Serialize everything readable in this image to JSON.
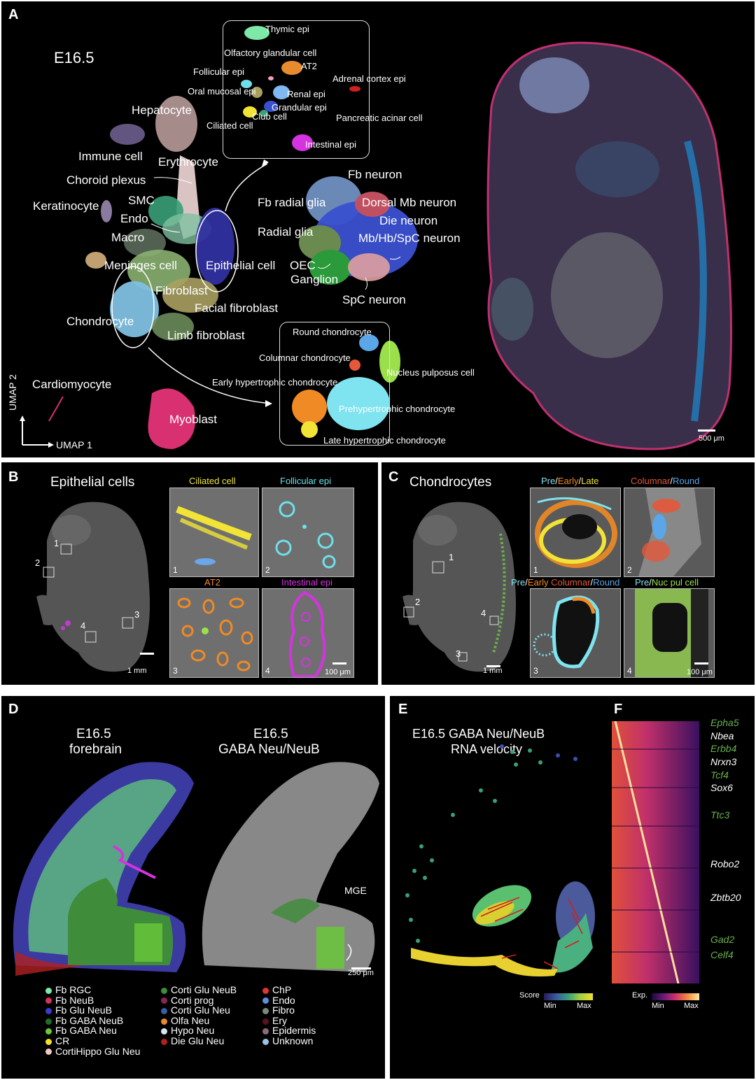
{
  "panels": {
    "a": {
      "label": "A",
      "stage": "E16.5",
      "axis_x": "UMAP 1",
      "axis_y": "UMAP 2",
      "scale_bar": "500 μm",
      "clusters": [
        "Hepatocyte",
        "Immune cell",
        "Erythrocyte",
        "Choroid plexus",
        "Keratinocyte",
        "SMC",
        "Endo",
        "Macro",
        "Meninges cell",
        "Epithelial cell",
        "Fibroblast",
        "Facial fibroblast",
        "Chondrocyte",
        "Limb fibroblast",
        "Cardiomyocyte",
        "Myoblast",
        "Fb neuron",
        "Fb radial glia",
        "Dorsal Mb neuron",
        "Die neuron",
        "Radial glia",
        "Mb/Hb/SpC neuron",
        "OEC",
        "Ganglion",
        "SpC neuron"
      ],
      "epi_inset": [
        "Thymic epi",
        "Olfactory glandular cell",
        "AT2",
        "Follicular epi",
        "Adrenal cortex epi",
        "Oral mucosal epi",
        "Renal epi",
        "Grandular epi",
        "Club cell",
        "Ciliated cell",
        "Pancreatic acinar cell",
        "Intestinal epi"
      ],
      "chondro_inset": [
        "Round chondrocyte",
        "Columnar chondrocyte",
        "Early hypertrophic chondrocyte",
        "Nucleus pulposus cell",
        "Prehypertrophic chondrocyte",
        "Late hypertrophic chondrocyte"
      ]
    },
    "b": {
      "label": "B",
      "title": "Epithelial cells",
      "tiles": [
        {
          "title": "Ciliated cell",
          "num": "1",
          "color": "#f1e436"
        },
        {
          "title": "Follicular epi",
          "num": "2",
          "color": "#6fe0ea"
        },
        {
          "title": "AT2",
          "num": "3",
          "color": "#f08a24"
        },
        {
          "title": "Intestinal epi",
          "num": "4",
          "color": "#d633e0"
        }
      ],
      "scale_mm": "1 mm",
      "scale_um": "100 μm",
      "markers": [
        "1",
        "2",
        "3",
        "4"
      ]
    },
    "c": {
      "label": "C",
      "title": "Chondrocytes",
      "tile_titles": [
        [
          {
            "t": "Pre",
            "c": "#7fe3f0"
          },
          {
            "t": "/",
            "c": "#ffffff"
          },
          {
            "t": "Early",
            "c": "#f08a24"
          },
          {
            "t": "/",
            "c": "#ffffff"
          },
          {
            "t": "Late",
            "c": "#f1e436"
          }
        ],
        [
          {
            "t": "Columnar",
            "c": "#e5583a"
          },
          {
            "t": "/",
            "c": "#ffffff"
          },
          {
            "t": "Round",
            "c": "#5aa6e8"
          }
        ],
        [
          {
            "t": "Pre",
            "c": "#7fe3f0"
          },
          {
            "t": "/",
            "c": "#ffffff"
          },
          {
            "t": "Early",
            "c": "#f08a24"
          },
          {
            "t": " ",
            "c": "#ffffff"
          },
          {
            "t": "Columnar",
            "c": "#e5583a"
          },
          {
            "t": "/",
            "c": "#ffffff"
          },
          {
            "t": "Round",
            "c": "#5aa6e8"
          }
        ],
        [
          {
            "t": "Pre",
            "c": "#7fe3f0"
          },
          {
            "t": "/",
            "c": "#ffffff"
          },
          {
            "t": "Nuc pul cell",
            "c": "#9be04a"
          }
        ]
      ],
      "nums": [
        "1",
        "2",
        "3",
        "4"
      ],
      "scale_mm": "1 mm",
      "scale_um": "100 μm"
    },
    "d": {
      "label": "D",
      "left_title_1": "E16.5",
      "left_title_2": "forebrain",
      "right_title_1": "E16.5",
      "right_title_2": "GABA Neu/NeuB",
      "mge": "MGE",
      "scale": "250 μm",
      "legend": [
        {
          "name": "Fb RGC",
          "color": "#7ee8a8"
        },
        {
          "name": "Fb NeuB",
          "color": "#d8305a"
        },
        {
          "name": "Fb Glu NeuB",
          "color": "#3b3ad0"
        },
        {
          "name": "Fb GABA NeuB",
          "color": "#1f6d2a"
        },
        {
          "name": "Fb GABA Neu",
          "color": "#6ac83a"
        },
        {
          "name": "CR",
          "color": "#f5e02a"
        },
        {
          "name": "CortiHippo Glu Neu",
          "color": "#f4c7c7"
        },
        {
          "name": "Corti Glu NeuB",
          "color": "#3f8c3a"
        },
        {
          "name": "Corti prog",
          "color": "#8a2452"
        },
        {
          "name": "Corti Glu Neu",
          "color": "#3a5da8"
        },
        {
          "name": "Olfa Neu",
          "color": "#e88a2e"
        },
        {
          "name": "Hypo Neu",
          "color": "#d7e6f7"
        },
        {
          "name": "Die Glu Neu",
          "color": "#b22020"
        },
        {
          "name": "ChP",
          "color": "#e03434"
        },
        {
          "name": "Endo",
          "color": "#5e8ee0"
        },
        {
          "name": "Fibro",
          "color": "#7a8a7a"
        },
        {
          "name": "Ery",
          "color": "#5a1020"
        },
        {
          "name": "Epidermis",
          "color": "#8a6a7a"
        },
        {
          "name": "Unknown",
          "color": "#9cc0e8"
        }
      ]
    },
    "e": {
      "label": "E",
      "title_1": "E16.5 GABA Neu/NeuB",
      "title_2": "RNA velocity",
      "score_label": "Score",
      "min": "Min",
      "max": "Max"
    },
    "f": {
      "label": "F",
      "exp_label": "Exp.",
      "min": "Min",
      "max": "Max",
      "genes": [
        {
          "name": "Epha5",
          "color": "#6ab04c"
        },
        {
          "name": "Nbea",
          "color": "#ffffff"
        },
        {
          "name": "Erbb4",
          "color": "#6ab04c"
        },
        {
          "name": "Nrxn3",
          "color": "#ffffff"
        },
        {
          "name": "Tcf4",
          "color": "#6ab04c"
        },
        {
          "name": "Sox6",
          "color": "#ffffff"
        },
        {
          "name": "Ttc3",
          "color": "#6ab04c"
        },
        {
          "name": "Robo2",
          "color": "#ffffff"
        },
        {
          "name": "Zbtb20",
          "color": "#ffffff"
        },
        {
          "name": "Gad2",
          "color": "#6ab04c"
        },
        {
          "name": "Celf4",
          "color": "#6ab04c"
        }
      ]
    }
  }
}
